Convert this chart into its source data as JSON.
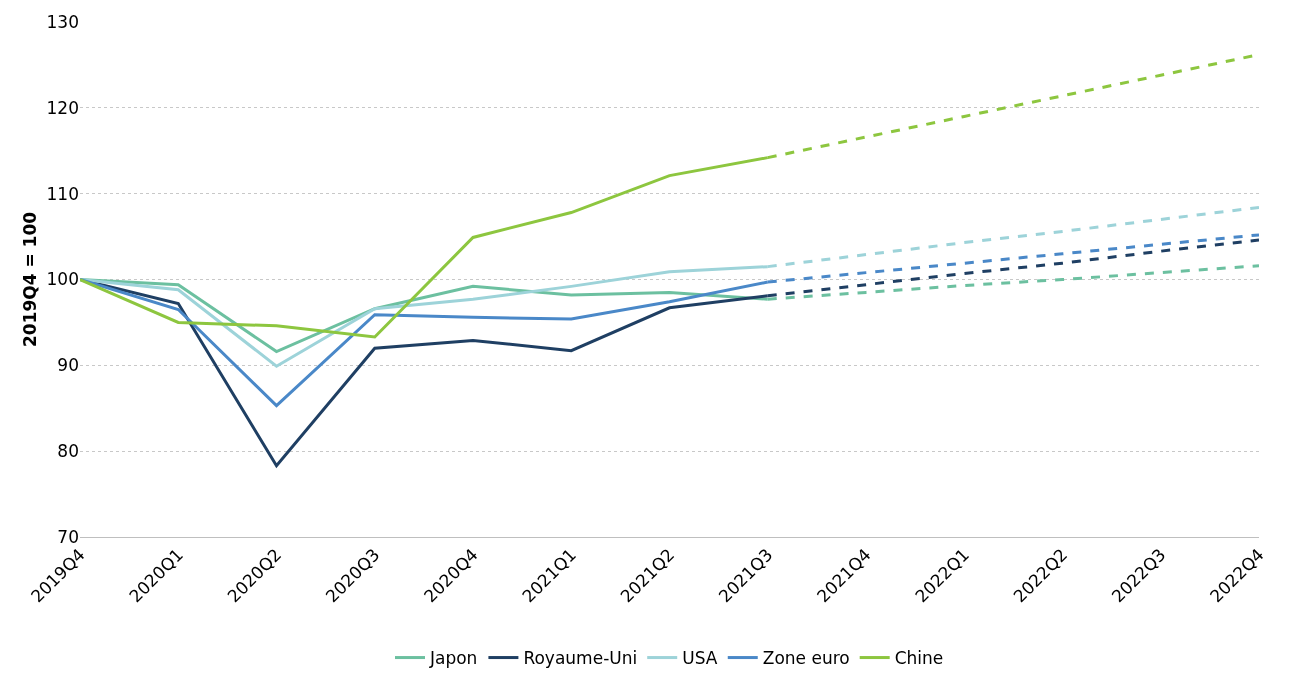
{
  "chart_data": {
    "type": "line",
    "ylabel": "2019Q4 = 100",
    "categories": [
      "2019Q4",
      "2020Q1",
      "2020Q2",
      "2020Q3",
      "2020Q4",
      "2021Q1",
      "2021Q2",
      "2021Q3",
      "2021Q4",
      "2022Q1",
      "2022Q2",
      "2022Q3",
      "2022Q4"
    ],
    "series": [
      {
        "name": "Japon",
        "color": "#6cc0a0",
        "line_style": "solid",
        "values": [
          100,
          99.4,
          91.6,
          96.6,
          99.2,
          98.2,
          98.5,
          97.7,
          null,
          null,
          null,
          null,
          null
        ]
      },
      {
        "name": "Royaume-Uni",
        "color": "#1f3f63",
        "line_style": "solid",
        "values": [
          100,
          97.2,
          78.3,
          92.0,
          92.9,
          91.7,
          96.7,
          98.1,
          null,
          null,
          null,
          null,
          null
        ]
      },
      {
        "name": "USA",
        "color": "#9dd3d9",
        "line_style": "solid",
        "values": [
          100,
          98.8,
          89.9,
          96.6,
          97.7,
          99.2,
          100.9,
          101.5,
          null,
          null,
          null,
          null,
          null
        ]
      },
      {
        "name": "Zone euro",
        "color": "#4a88c8",
        "line_style": "solid",
        "values": [
          100,
          96.5,
          85.3,
          95.9,
          95.6,
          95.4,
          97.4,
          99.7,
          null,
          null,
          null,
          null,
          null
        ]
      },
      {
        "name": "Chine",
        "color": "#8dc63f",
        "line_style": "solid",
        "values": [
          100,
          95.0,
          94.6,
          93.3,
          104.9,
          107.8,
          112.1,
          114.2,
          null,
          null,
          null,
          null,
          null
        ]
      },
      {
        "color": "#6cc0a0",
        "line_style": "dashed",
        "values": [
          null,
          null,
          null,
          null,
          null,
          null,
          null,
          97.7,
          98.5,
          99.3,
          100.0,
          100.8,
          101.6
        ]
      },
      {
        "color": "#1f3f63",
        "line_style": "dashed",
        "values": [
          null,
          null,
          null,
          null,
          null,
          null,
          null,
          98.1,
          99.4,
          100.7,
          101.9,
          103.3,
          104.6
        ]
      },
      {
        "color": "#9dd3d9",
        "line_style": "dashed",
        "values": [
          null,
          null,
          null,
          null,
          null,
          null,
          null,
          101.5,
          102.9,
          104.3,
          105.6,
          107.0,
          108.4
        ]
      },
      {
        "color": "#4a88c8",
        "line_style": "dashed",
        "values": [
          null,
          null,
          null,
          null,
          null,
          null,
          null,
          99.7,
          100.8,
          101.9,
          103.0,
          104.1,
          105.2
        ]
      },
      {
        "color": "#8dc63f",
        "line_style": "dashed",
        "values": [
          null,
          null,
          null,
          null,
          null,
          null,
          null,
          114.2,
          116.6,
          119.0,
          121.4,
          123.8,
          126.2
        ]
      }
    ],
    "ylim": [
      70,
      130
    ],
    "yticks": [
      70,
      80,
      90,
      100,
      110,
      120,
      130
    ],
    "grid": "y",
    "legend": "bottom",
    "marker": "none"
  }
}
